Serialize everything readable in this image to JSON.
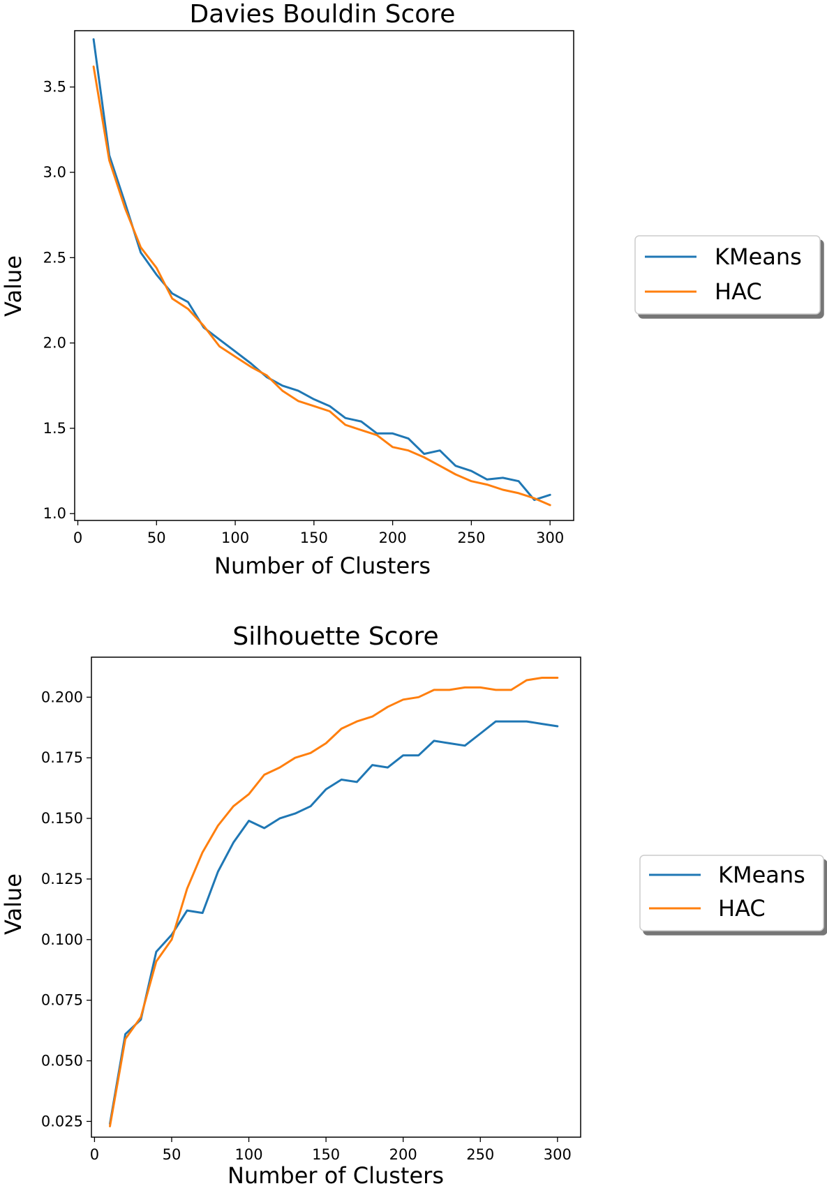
{
  "chart_data": [
    {
      "type": "line",
      "title": "Davies Bouldin Score",
      "xlabel": "Number of Clusters",
      "ylabel": "Value",
      "xlim": [
        -2,
        315
      ],
      "ylim": [
        0.96,
        3.83
      ],
      "xticks": [
        0,
        50,
        100,
        150,
        200,
        250,
        300
      ],
      "yticks": [
        1.0,
        1.5,
        2.0,
        2.5,
        3.0,
        3.5
      ],
      "ytick_labels": [
        "1.0",
        "1.5",
        "2.0",
        "2.5",
        "3.0",
        "3.5"
      ],
      "x": [
        10,
        20,
        30,
        40,
        50,
        60,
        70,
        80,
        90,
        100,
        110,
        120,
        130,
        140,
        150,
        160,
        170,
        180,
        190,
        200,
        210,
        220,
        230,
        240,
        250,
        260,
        270,
        280,
        290,
        300
      ],
      "series": [
        {
          "name": "KMeans",
          "color": "#1f77b4",
          "values": [
            3.78,
            3.1,
            2.82,
            2.53,
            2.4,
            2.29,
            2.24,
            2.09,
            2.02,
            1.95,
            1.88,
            1.8,
            1.75,
            1.72,
            1.67,
            1.63,
            1.56,
            1.54,
            1.47,
            1.47,
            1.44,
            1.35,
            1.37,
            1.28,
            1.25,
            1.2,
            1.21,
            1.19,
            1.08,
            1.11
          ]
        },
        {
          "name": "HAC",
          "color": "#ff7f0e",
          "values": [
            3.62,
            3.07,
            2.79,
            2.56,
            2.44,
            2.26,
            2.2,
            2.1,
            1.98,
            1.92,
            1.86,
            1.81,
            1.72,
            1.66,
            1.63,
            1.6,
            1.52,
            1.49,
            1.46,
            1.39,
            1.37,
            1.33,
            1.28,
            1.23,
            1.19,
            1.17,
            1.14,
            1.12,
            1.09,
            1.05
          ]
        }
      ],
      "legend": {
        "placement": "right",
        "entries": [
          "KMeans",
          "HAC"
        ]
      }
    },
    {
      "type": "line",
      "title": "Silhouette Score",
      "xlabel": "Number of Clusters",
      "ylabel": "Value",
      "xlim": [
        -2,
        315
      ],
      "ylim": [
        0.0185,
        0.2165
      ],
      "xticks": [
        0,
        50,
        100,
        150,
        200,
        250,
        300
      ],
      "yticks": [
        0.025,
        0.05,
        0.075,
        0.1,
        0.125,
        0.15,
        0.175,
        0.2
      ],
      "ytick_labels": [
        "0.025",
        "0.050",
        "0.075",
        "0.100",
        "0.125",
        "0.150",
        "0.175",
        "0.200"
      ],
      "x": [
        10,
        20,
        30,
        40,
        50,
        60,
        70,
        80,
        90,
        100,
        110,
        120,
        130,
        140,
        150,
        160,
        170,
        180,
        190,
        200,
        210,
        220,
        230,
        240,
        250,
        260,
        270,
        280,
        290,
        300
      ],
      "series": [
        {
          "name": "KMeans",
          "color": "#1f77b4",
          "values": [
            0.024,
            0.061,
            0.067,
            0.095,
            0.102,
            0.112,
            0.111,
            0.128,
            0.14,
            0.149,
            0.146,
            0.15,
            0.152,
            0.155,
            0.162,
            0.166,
            0.165,
            0.172,
            0.171,
            0.176,
            0.176,
            0.182,
            0.181,
            0.18,
            0.185,
            0.19,
            0.19,
            0.19,
            0.189,
            0.188
          ]
        },
        {
          "name": "HAC",
          "color": "#ff7f0e",
          "values": [
            0.023,
            0.059,
            0.068,
            0.091,
            0.1,
            0.121,
            0.136,
            0.147,
            0.155,
            0.16,
            0.168,
            0.171,
            0.175,
            0.177,
            0.181,
            0.187,
            0.19,
            0.192,
            0.196,
            0.199,
            0.2,
            0.203,
            0.203,
            0.204,
            0.204,
            0.203,
            0.203,
            0.207,
            0.208,
            0.208
          ]
        }
      ],
      "legend": {
        "placement": "right",
        "entries": [
          "KMeans",
          "HAC"
        ]
      }
    }
  ]
}
